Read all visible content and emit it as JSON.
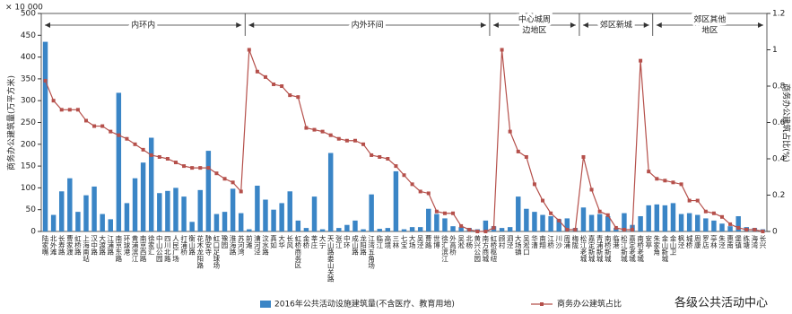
{
  "chart_data": {
    "type": "bar_line",
    "y_unit": "× 10 000",
    "y_label": "商务办公建筑量(万平方米)",
    "y2_label": "商务办公建筑占比(%)",
    "corner_note": "各级公共活动中心",
    "ylim": [
      0,
      500
    ],
    "yticks": [
      0,
      50,
      100,
      150,
      200,
      250,
      300,
      350,
      400,
      450,
      500
    ],
    "y2lim": [
      0,
      1.2
    ],
    "y2ticks": [
      0,
      0.2,
      0.4,
      0.6,
      0.8,
      1,
      1.2
    ],
    "groups": [
      {
        "name": "内环内",
        "categories": [
          "陆家嘴",
          "北外滩",
          "长寿路",
          "曹家渡",
          "虹桥路",
          "上海南站",
          "汉中路",
          "大渡路",
          "江浦路",
          "南京东路",
          "环球港",
          "黄浦滨江",
          "南京西路",
          "徐家汇",
          "中山公园",
          "四川北路",
          "人民广场",
          "打浦桥",
          "衡山路",
          "花木龙阳路",
          "静安寺",
          "虹口足球场",
          "豫园",
          "淮海路",
          "苏河湾"
        ]
      },
      {
        "name": "内外环间",
        "categories": [
          "前滩",
          "漕河泾",
          "汶水路",
          "真如",
          "大华",
          "长风",
          "虹桥商务区",
          "金桥",
          "莘庄",
          "大宁",
          "天山路娄山关路",
          "张江",
          "中环",
          "成山路",
          "龙阳路",
          "江湾五角场",
          "临江",
          "高境",
          "三林",
          "七宝",
          "大场",
          "吴泾",
          "曹路",
          "世博",
          "徐汇滨江",
          "外高桥",
          "吴淞",
          "北杨",
          "黄兴公园",
          "南方商城"
        ]
      },
      {
        "name": [
          "中心城周",
          "边地区"
        ],
        "categories": [
          "虹桥枢纽",
          "顾村",
          "泗泾",
          "大场镇",
          "吴淞口",
          "华漕",
          "南翔",
          "江桥",
          "川沙",
          "周浦",
          "梅陇"
        ]
      },
      {
        "name": "郊区新城",
        "categories": [
          "松江老城",
          "嘉定新城",
          "青浦新城",
          "南桥新城",
          "临港",
          "松江新城",
          "嘉定老城",
          "南桥老城",
          "安亭"
        ]
      },
      {
        "name": [
          "郊区其他",
          "地区"
        ],
        "categories": [
          "朱家角",
          "金山新城",
          "金山卫",
          "枫泾",
          "城桥",
          "周康",
          "罗店",
          "亭林",
          "朱泾",
          "惠南",
          "堡镇",
          "练塘",
          "海湾",
          "长兴"
        ]
      }
    ],
    "series": [
      {
        "name": "2016年公共活动设施建筑量(不含医疗、教育用地)",
        "type": "bar",
        "color": "#3a85c6",
        "values": [
          435,
          38,
          92,
          122,
          45,
          83,
          103,
          40,
          28,
          318,
          65,
          122,
          158,
          215,
          88,
          93,
          100,
          80,
          22,
          95,
          185,
          40,
          45,
          98,
          42,
          5,
          105,
          73,
          50,
          65,
          92,
          25,
          8,
          80,
          5,
          180,
          8,
          15,
          25,
          5,
          85,
          6,
          8,
          138,
          5,
          10,
          10,
          52,
          40,
          30,
          12,
          10,
          8,
          5,
          25,
          12,
          8,
          10,
          80,
          52,
          45,
          38,
          35,
          28,
          30,
          8,
          55,
          38,
          40,
          35,
          8,
          42,
          15,
          35,
          60,
          62,
          60,
          65,
          40,
          42,
          38,
          30,
          25,
          18,
          12,
          35,
          10,
          8,
          5
        ]
      },
      {
        "name": "商务办公建筑占比",
        "type": "line",
        "axis": "y2",
        "color": "#b5504b",
        "values": [
          0.83,
          0.72,
          0.67,
          0.67,
          0.67,
          0.61,
          0.58,
          0.58,
          0.55,
          0.53,
          0.51,
          0.48,
          0.45,
          0.42,
          0.41,
          0.4,
          0.38,
          0.36,
          0.35,
          0.35,
          0.35,
          0.32,
          0.29,
          0.27,
          0.22,
          1.0,
          0.88,
          0.85,
          0.81,
          0.8,
          0.75,
          0.74,
          0.57,
          0.56,
          0.55,
          0.53,
          0.51,
          0.5,
          0.5,
          0.48,
          0.42,
          0.41,
          0.4,
          0.36,
          0.31,
          0.26,
          0.22,
          0.21,
          0.11,
          0.1,
          0.1,
          0.03,
          0.01,
          0.0,
          0.0,
          0.02,
          1.0,
          0.55,
          0.44,
          0.41,
          0.26,
          0.17,
          0.1,
          0.06,
          0.01,
          0.01,
          0.41,
          0.23,
          0.11,
          0.09,
          0.02,
          0.01,
          0.01,
          0.94,
          0.33,
          0.29,
          0.28,
          0.27,
          0.26,
          0.17,
          0.17,
          0.11,
          0.1,
          0.08,
          0.04,
          0.02,
          0.01,
          0.01,
          0.0
        ]
      }
    ]
  }
}
